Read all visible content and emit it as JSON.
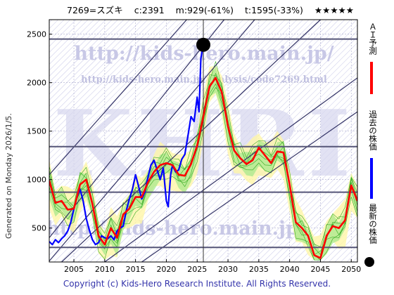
{
  "header": {
    "ticker": "7269=スズキ",
    "close": "c:2391",
    "max": "m:929(-61%)",
    "target": "t:1595(-33%)",
    "stars": "★★★★★"
  },
  "left_caption": "Generated on Monday 2026/1/5.",
  "footer": "Copyright (c) Kids-Hero Research Institute. All Rights Reserved.",
  "watermark": {
    "url_big": "http://kids-hero.main.jp/",
    "url_small": "http://kids-hero.main.jp/analysis/code7269.html",
    "big_letters": "KHRI",
    "url_bottom": "http://kids-hero.main.jp/"
  },
  "legend": [
    {
      "label": "ＡＩ予測",
      "color": "#ff0000"
    },
    {
      "label": "過去の株価",
      "color": "#0000ff"
    },
    {
      "label": "最新の株価",
      "color": "#000000"
    }
  ],
  "chart_data": {
    "type": "line",
    "title": "",
    "xlabel": "",
    "ylabel": "",
    "xlim": [
      2001,
      2051
    ],
    "ylim": [
      150,
      2650
    ],
    "xticks": [
      2005,
      2010,
      2015,
      2020,
      2025,
      2030,
      2035,
      2040,
      2045,
      2050
    ],
    "yticks": [
      500,
      1000,
      1500,
      2000,
      2500
    ],
    "grid": true,
    "horizontal_lines": [
      2450,
      1340,
      870,
      300
    ],
    "current_marker": {
      "x": 2026.0,
      "y": 2391
    },
    "current_vline_x": 2026.0,
    "series": [
      {
        "name": "過去の株価",
        "color": "#0000ff",
        "x": [
          2001.0,
          2001.5,
          2002.0,
          2002.5,
          2003.0,
          2003.5,
          2004.0,
          2004.5,
          2005.0,
          2005.5,
          2006.0,
          2006.5,
          2007.0,
          2007.5,
          2008.0,
          2008.5,
          2009.0,
          2009.5,
          2010.0,
          2010.5,
          2011.0,
          2011.5,
          2012.0,
          2012.5,
          2013.0,
          2013.5,
          2014.0,
          2014.5,
          2015.0,
          2015.5,
          2016.0,
          2016.5,
          2017.0,
          2017.5,
          2018.0,
          2018.5,
          2019.0,
          2019.5,
          2020.0,
          2020.3,
          2020.7,
          2021.0,
          2021.5,
          2022.0,
          2022.5,
          2023.0,
          2023.5,
          2024.0,
          2024.5,
          2025.0,
          2025.3,
          2025.6,
          2026.0
        ],
        "y": [
          360,
          330,
          380,
          350,
          390,
          420,
          470,
          560,
          700,
          820,
          900,
          780,
          600,
          480,
          380,
          330,
          350,
          420,
          400,
          390,
          420,
          380,
          470,
          500,
          520,
          680,
          800,
          900,
          1050,
          930,
          800,
          870,
          1020,
          1150,
          1200,
          1100,
          1000,
          1120,
          780,
          720,
          1050,
          1150,
          1080,
          1100,
          1210,
          1260,
          1450,
          1650,
          1600,
          1850,
          1700,
          2250,
          2391
        ]
      },
      {
        "name": "ＡＩ予測",
        "color": "#ff0000",
        "x": [
          2001.0,
          2002.0,
          2003.0,
          2004.0,
          2005.0,
          2006.0,
          2007.0,
          2008.0,
          2009.0,
          2010.0,
          2011.0,
          2012.0,
          2013.0,
          2014.0,
          2015.0,
          2016.0,
          2017.0,
          2018.0,
          2019.0,
          2020.0,
          2021.0,
          2022.0,
          2023.0,
          2024.0,
          2025.0,
          2026.0,
          2027.0,
          2028.0,
          2029.0,
          2030.0,
          2031.0,
          2032.0,
          2033.0,
          2034.0,
          2035.0,
          2036.0,
          2037.0,
          2038.0,
          2039.0,
          2040.0,
          2041.0,
          2042.0,
          2043.0,
          2044.0,
          2045.0,
          2046.0,
          2047.0,
          2048.0,
          2049.0,
          2050.0,
          2051.0
        ],
        "y": [
          990,
          760,
          780,
          690,
          700,
          950,
          1000,
          750,
          420,
          330,
          500,
          400,
          640,
          700,
          820,
          820,
          970,
          1080,
          1150,
          1170,
          1150,
          1050,
          1040,
          1160,
          1350,
          1650,
          1960,
          2050,
          1900,
          1550,
          1300,
          1220,
          1160,
          1200,
          1330,
          1250,
          1170,
          1290,
          1280,
          950,
          560,
          500,
          420,
          220,
          190,
          420,
          520,
          500,
          580,
          940,
          780
        ]
      }
    ]
  }
}
